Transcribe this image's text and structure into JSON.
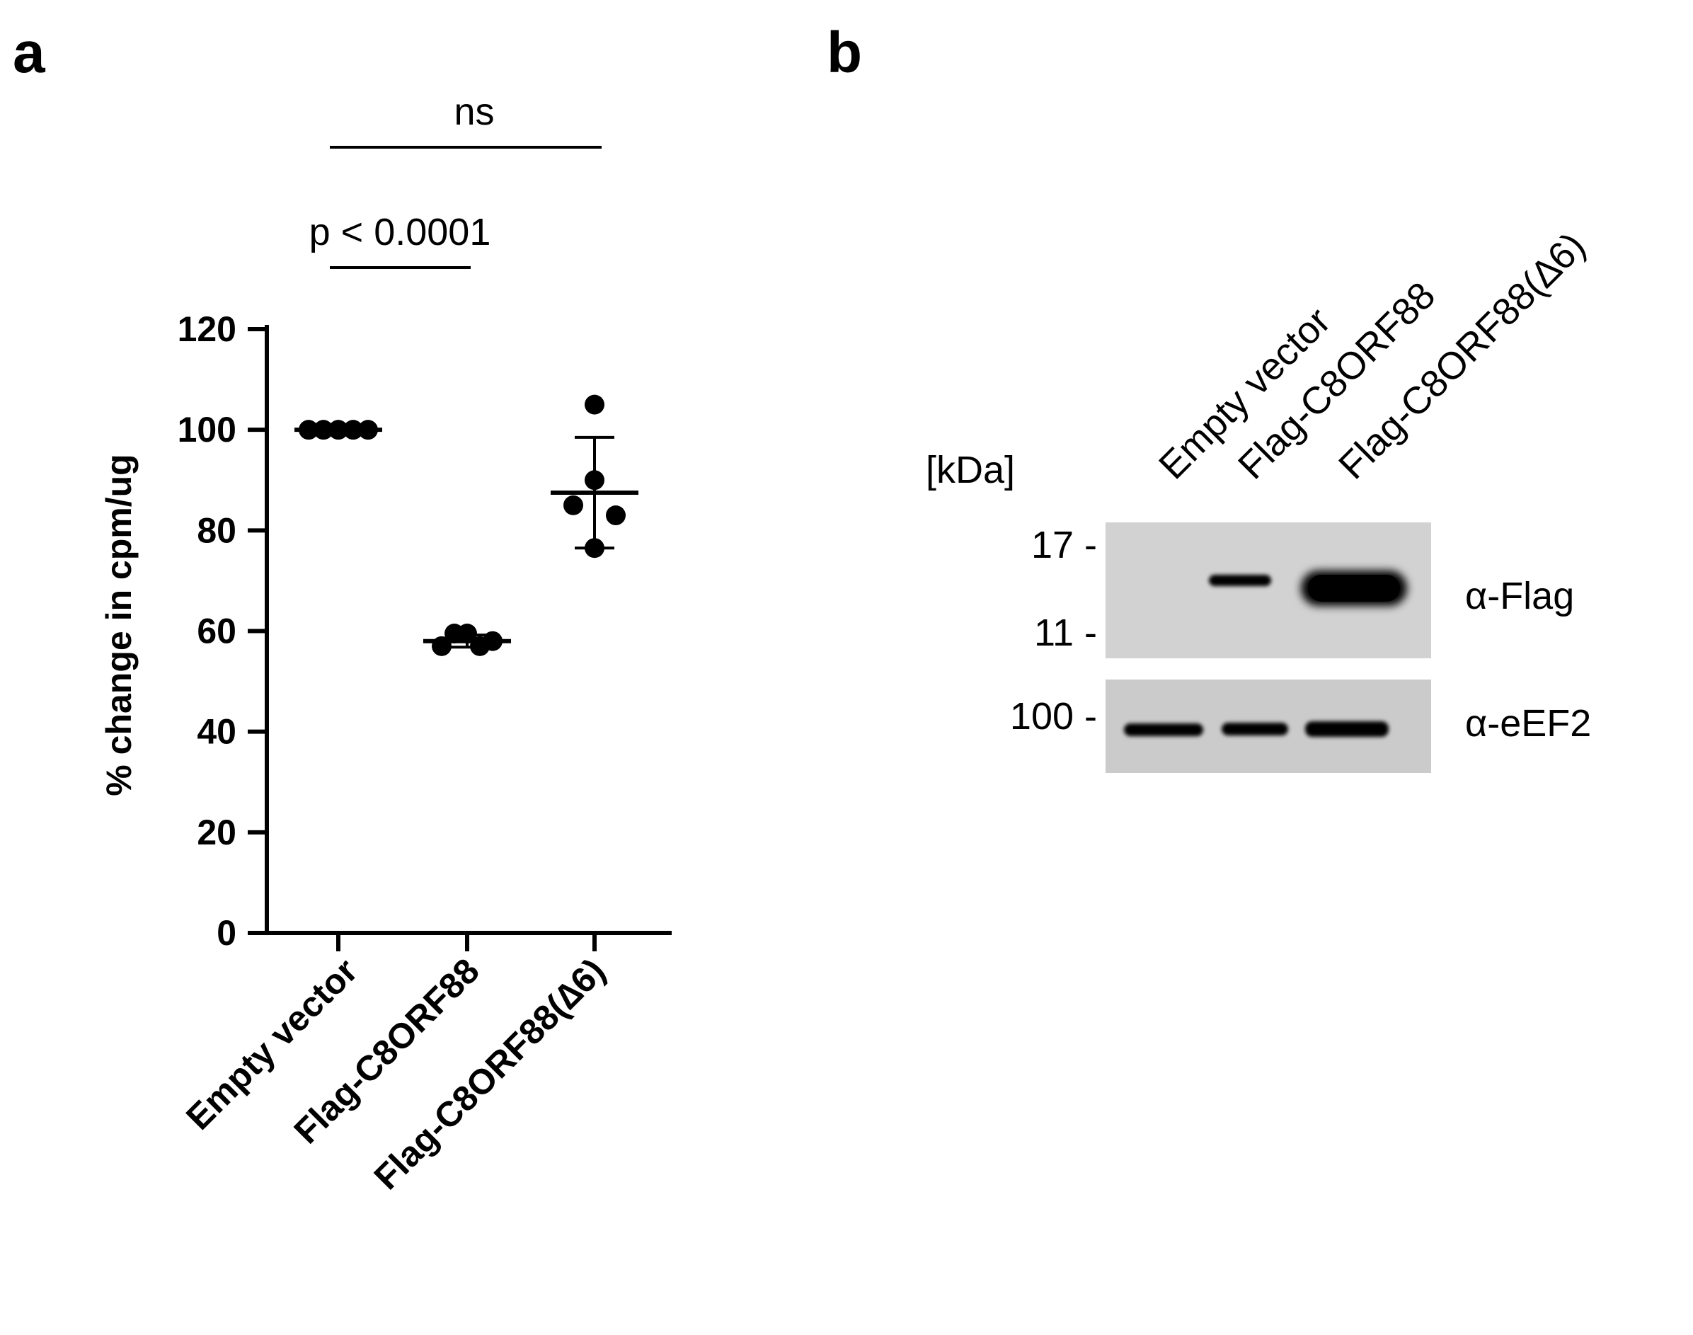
{
  "panel_a": {
    "letter": "a",
    "chart_data": {
      "type": "scatter",
      "ylabel": "% change in cpm/ug",
      "ylim": [
        0,
        120
      ],
      "yticks": [
        "0",
        "20",
        "40",
        "60",
        "80",
        "100",
        "120"
      ],
      "categories": [
        "Empty vector",
        "Flag-C8ORF88",
        "Flag-C8ORF88(∆6)"
      ],
      "groups": [
        {
          "category": "Empty vector",
          "points": [
            100,
            100,
            100,
            100,
            100
          ],
          "mean": 100,
          "sd": 0
        },
        {
          "category": "Flag-C8ORF88",
          "points": [
            57,
            59.5,
            59.5,
            57,
            58
          ],
          "mean": 58,
          "sd": 1.2
        },
        {
          "category": "Flag-C8ORF88(∆6)",
          "points": [
            105,
            90,
            85,
            83,
            76.5
          ],
          "mean": 87.5,
          "sd": 11
        }
      ],
      "comparisons": [
        {
          "from": "Empty vector",
          "to": "Flag-C8ORF88",
          "label": "p < 0.0001"
        },
        {
          "from": "Empty vector",
          "to": "Flag-C8ORF88(∆6)",
          "label": "ns"
        }
      ]
    }
  },
  "panel_b": {
    "letter": "b",
    "lanes": [
      "Empty vector",
      "Flag-C8ORF88",
      "Flag-C8ORF88(∆6)"
    ],
    "unit_label": "[kDa]",
    "markers": [
      "17 -",
      "11 -",
      "100 -"
    ],
    "antibodies": [
      "α-Flag",
      "α-eEF2"
    ],
    "flag_band_intensity": [
      0,
      0.35,
      1.0
    ],
    "eef2_band_intensity": [
      0.85,
      0.8,
      0.9
    ]
  }
}
